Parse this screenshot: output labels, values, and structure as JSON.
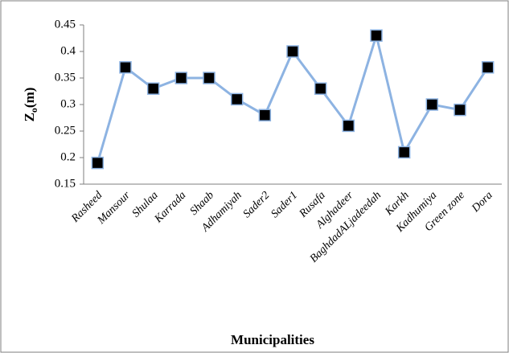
{
  "chart_data": {
    "type": "line",
    "ylabel": [
      "Z",
      "o",
      "(m)"
    ],
    "xlabel": "Municipalities",
    "categories": [
      "Rasheed",
      "Mansour",
      "Shulaa",
      "Karrada",
      "Shaab",
      "Adhamiyah",
      "Sader2",
      "Sader1",
      "Rusafa",
      "Alghadeer",
      "BaghdadALjadeedah",
      "Karkh",
      "Kadhumiya",
      "Green zone",
      "Dora"
    ],
    "values": [
      0.19,
      0.37,
      0.33,
      0.35,
      0.35,
      0.31,
      0.28,
      0.4,
      0.33,
      0.26,
      0.43,
      0.21,
      0.3,
      0.29,
      0.37
    ],
    "color": "#8db3e2",
    "marker_color": "#000000",
    "ylim": [
      0.15,
      0.45
    ],
    "yticks": [
      0.15,
      0.2,
      0.25,
      0.3,
      0.35,
      0.4,
      0.45
    ],
    "grid": false
  }
}
